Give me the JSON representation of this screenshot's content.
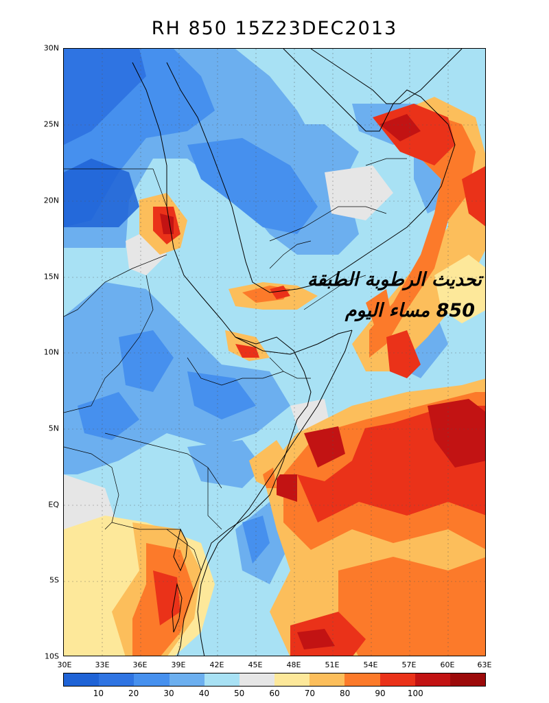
{
  "title": "RH 850 15Z23DEC2013",
  "overlay": {
    "line1": "تحديث الرطوبة الطبقة",
    "line2": "850 مساء اليوم"
  },
  "axes": {
    "x_labels": [
      "30E",
      "33E",
      "36E",
      "39E",
      "42E",
      "45E",
      "48E",
      "51E",
      "54E",
      "57E",
      "60E",
      "63E"
    ],
    "y_labels": [
      "30N",
      "25N",
      "20N",
      "15N",
      "10N",
      "5N",
      "EQ",
      "5S",
      "10S"
    ]
  },
  "colorbar": {
    "colors": [
      "#1f63d6",
      "#2f74e2",
      "#4690ee",
      "#6cafef",
      "#a8e1f4",
      "#e6e6e6",
      "#fde89a",
      "#fcbe5b",
      "#fc7a2a",
      "#ea3219",
      "#c21313",
      "#9c0a0a"
    ],
    "labels": [
      "10",
      "20",
      "30",
      "40",
      "50",
      "60",
      "70",
      "80",
      "90",
      "100"
    ]
  },
  "map_data": {
    "lon_range": [
      30,
      63
    ],
    "lat_range": [
      -10,
      30
    ],
    "field": "Relative humidity at 850 hPa (%)",
    "features": [
      "Red Sea",
      "Arabian Peninsula",
      "Horn of Africa",
      "Gulf of Aden",
      "Arabian Sea",
      "Persian Gulf",
      "East Africa"
    ]
  }
}
